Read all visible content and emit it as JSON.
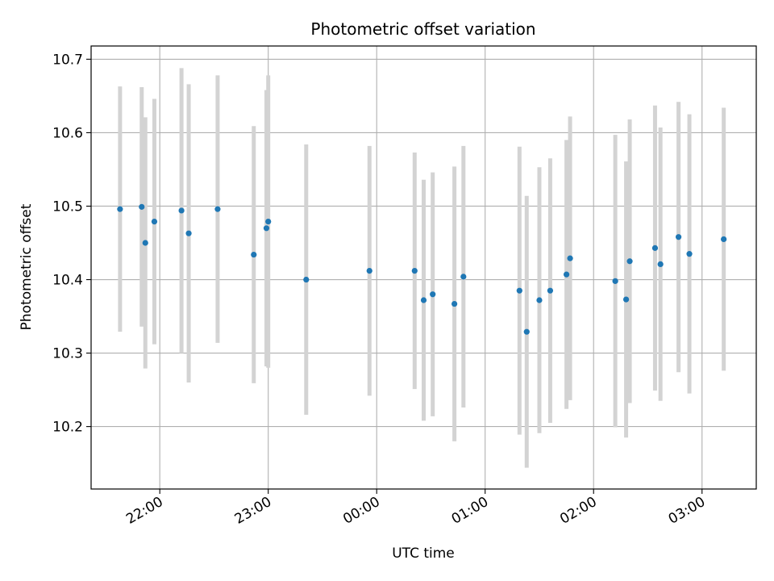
{
  "chart_data": {
    "type": "scatter",
    "title": "Photometric offset variation",
    "xlabel": "UTC time",
    "ylabel": "Photometric offset",
    "x_axis_type": "time",
    "x_ticks": [
      "22:00",
      "23:00",
      "00:00",
      "01:00",
      "02:00",
      "03:00"
    ],
    "y_ticks": [
      "10.2",
      "10.3",
      "10.4",
      "10.5",
      "10.6",
      "10.7"
    ],
    "xlim": [
      "21:22",
      "03:30"
    ],
    "ylim": [
      10.115,
      10.718
    ],
    "grid": true,
    "colors": {
      "points": "#1f77b4",
      "errorbars": "#d3d3d3",
      "grid": "#b0b0b0"
    },
    "points": [
      {
        "x": "21:38",
        "y": 10.496,
        "err": 0.167
      },
      {
        "x": "21:50",
        "y": 10.499,
        "err": 0.163
      },
      {
        "x": "21:52",
        "y": 10.45,
        "err": 0.171
      },
      {
        "x": "21:57",
        "y": 10.479,
        "err": 0.167
      },
      {
        "x": "22:12",
        "y": 10.494,
        "err": 0.194
      },
      {
        "x": "22:16",
        "y": 10.463,
        "err": 0.203
      },
      {
        "x": "22:32",
        "y": 10.496,
        "err": 0.182
      },
      {
        "x": "22:52",
        "y": 10.434,
        "err": 0.175
      },
      {
        "x": "22:59",
        "y": 10.47,
        "err": 0.188
      },
      {
        "x": "23:00",
        "y": 10.479,
        "err": 0.199
      },
      {
        "x": "23:21",
        "y": 10.4,
        "err": 0.184
      },
      {
        "x": "23:56",
        "y": 10.412,
        "err": 0.17
      },
      {
        "x": "00:21",
        "y": 10.412,
        "err": 0.161
      },
      {
        "x": "00:26",
        "y": 10.372,
        "err": 0.164
      },
      {
        "x": "00:31",
        "y": 10.38,
        "err": 0.166
      },
      {
        "x": "00:43",
        "y": 10.367,
        "err": 0.187
      },
      {
        "x": "00:48",
        "y": 10.404,
        "err": 0.178
      },
      {
        "x": "01:19",
        "y": 10.385,
        "err": 0.196
      },
      {
        "x": "01:23",
        "y": 10.329,
        "err": 0.185
      },
      {
        "x": "01:30",
        "y": 10.372,
        "err": 0.181
      },
      {
        "x": "01:36",
        "y": 10.385,
        "err": 0.18
      },
      {
        "x": "01:45",
        "y": 10.407,
        "err": 0.183
      },
      {
        "x": "01:47",
        "y": 10.429,
        "err": 0.193
      },
      {
        "x": "02:12",
        "y": 10.398,
        "err": 0.199
      },
      {
        "x": "02:18",
        "y": 10.373,
        "err": 0.188
      },
      {
        "x": "02:20",
        "y": 10.425,
        "err": 0.193
      },
      {
        "x": "02:34",
        "y": 10.443,
        "err": 0.194
      },
      {
        "x": "02:37",
        "y": 10.421,
        "err": 0.186
      },
      {
        "x": "02:47",
        "y": 10.458,
        "err": 0.184
      },
      {
        "x": "02:53",
        "y": 10.435,
        "err": 0.19
      },
      {
        "x": "03:12",
        "y": 10.455,
        "err": 0.179
      }
    ]
  }
}
